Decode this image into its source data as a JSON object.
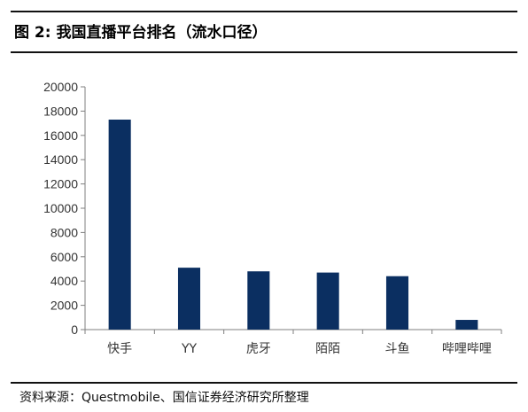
{
  "figure": {
    "title": "图 2:  我国直播平台排名（流水口径）",
    "source": "资料来源：Questmobile、国信证券经济研究所整理"
  },
  "colors": {
    "bar": "#0B2F61",
    "axis": "#7f7f7f",
    "rule": "#111111",
    "text": "#333333"
  },
  "chart_data": {
    "type": "bar",
    "title": "",
    "xlabel": "",
    "ylabel": "",
    "categories": [
      "快手",
      "YY",
      "虎牙",
      "陌陌",
      "斗鱼",
      "哔哩哔哩"
    ],
    "values": [
      17300,
      5100,
      4800,
      4700,
      4400,
      800
    ],
    "ylim": [
      0,
      20000
    ],
    "yticks": [
      0,
      2000,
      4000,
      6000,
      8000,
      10000,
      12000,
      14000,
      16000,
      18000,
      20000
    ],
    "grid": false,
    "legend": "none"
  }
}
